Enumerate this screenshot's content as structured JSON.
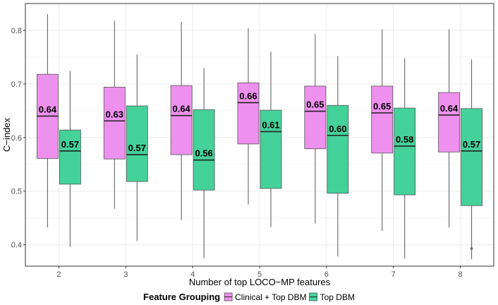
{
  "chart_data": {
    "type": "box",
    "title": "",
    "xlabel": "Number of top LOCO−MP features",
    "ylabel": "C−index",
    "ylim": [
      0.36,
      0.85
    ],
    "yticks": [
      0.4,
      0.5,
      0.6,
      0.7,
      0.8
    ],
    "ytick_labels": [
      "0.4",
      "0.5",
      "0.6",
      "0.7",
      "0.8"
    ],
    "categories": [
      "2",
      "3",
      "4",
      "5",
      "6",
      "7",
      "8"
    ],
    "grid": true,
    "legend": {
      "title": "Feature Grouping",
      "position": "bottom",
      "entries": [
        "Clinical + Top DBM",
        "Top DBM"
      ]
    },
    "series": [
      {
        "name": "Clinical + Top DBM",
        "color": "#EE90EE",
        "boxes": [
          {
            "category": "2",
            "whisker_low": 0.432,
            "q1": 0.561,
            "median": 0.64,
            "q3": 0.718,
            "whisker_high": 0.83,
            "label": "0.64",
            "outliers": []
          },
          {
            "category": "3",
            "whisker_low": 0.467,
            "q1": 0.56,
            "median": 0.631,
            "q3": 0.694,
            "whisker_high": 0.818,
            "label": "0.63",
            "outliers": []
          },
          {
            "category": "4",
            "whisker_low": 0.446,
            "q1": 0.568,
            "median": 0.641,
            "q3": 0.697,
            "whisker_high": 0.816,
            "label": "0.64",
            "outliers": []
          },
          {
            "category": "5",
            "whisker_low": 0.475,
            "q1": 0.588,
            "median": 0.665,
            "q3": 0.702,
            "whisker_high": 0.804,
            "label": "0.66",
            "outliers": []
          },
          {
            "category": "6",
            "whisker_low": 0.44,
            "q1": 0.579,
            "median": 0.649,
            "q3": 0.696,
            "whisker_high": 0.793,
            "label": "0.65",
            "outliers": []
          },
          {
            "category": "7",
            "whisker_low": 0.426,
            "q1": 0.571,
            "median": 0.646,
            "q3": 0.696,
            "whisker_high": 0.802,
            "label": "0.65",
            "outliers": []
          },
          {
            "category": "8",
            "whisker_low": 0.432,
            "q1": 0.573,
            "median": 0.642,
            "q3": 0.684,
            "whisker_high": 0.802,
            "label": "0.64",
            "outliers": []
          }
        ]
      },
      {
        "name": "Top DBM",
        "color": "#44D19A",
        "boxes": [
          {
            "category": "2",
            "whisker_low": 0.396,
            "q1": 0.513,
            "median": 0.575,
            "q3": 0.614,
            "whisker_high": 0.724,
            "label": "0.57",
            "outliers": []
          },
          {
            "category": "3",
            "whisker_low": 0.407,
            "q1": 0.518,
            "median": 0.568,
            "q3": 0.659,
            "whisker_high": 0.755,
            "label": "0.57",
            "outliers": []
          },
          {
            "category": "4",
            "whisker_low": 0.375,
            "q1": 0.502,
            "median": 0.558,
            "q3": 0.652,
            "whisker_high": 0.73,
            "label": "0.56",
            "outliers": []
          },
          {
            "category": "5",
            "whisker_low": 0.433,
            "q1": 0.505,
            "median": 0.611,
            "q3": 0.651,
            "whisker_high": 0.76,
            "label": "0.61",
            "outliers": []
          },
          {
            "category": "6",
            "whisker_low": 0.378,
            "q1": 0.496,
            "median": 0.604,
            "q3": 0.66,
            "whisker_high": 0.752,
            "label": "0.60",
            "outliers": []
          },
          {
            "category": "7",
            "whisker_low": 0.374,
            "q1": 0.493,
            "median": 0.584,
            "q3": 0.655,
            "whisker_high": 0.748,
            "label": "0.58",
            "outliers": []
          },
          {
            "category": "8",
            "whisker_low": 0.373,
            "q1": 0.473,
            "median": 0.575,
            "q3": 0.654,
            "whisker_high": 0.746,
            "label": "0.57",
            "outliers": [
              0.393
            ]
          }
        ]
      }
    ]
  }
}
